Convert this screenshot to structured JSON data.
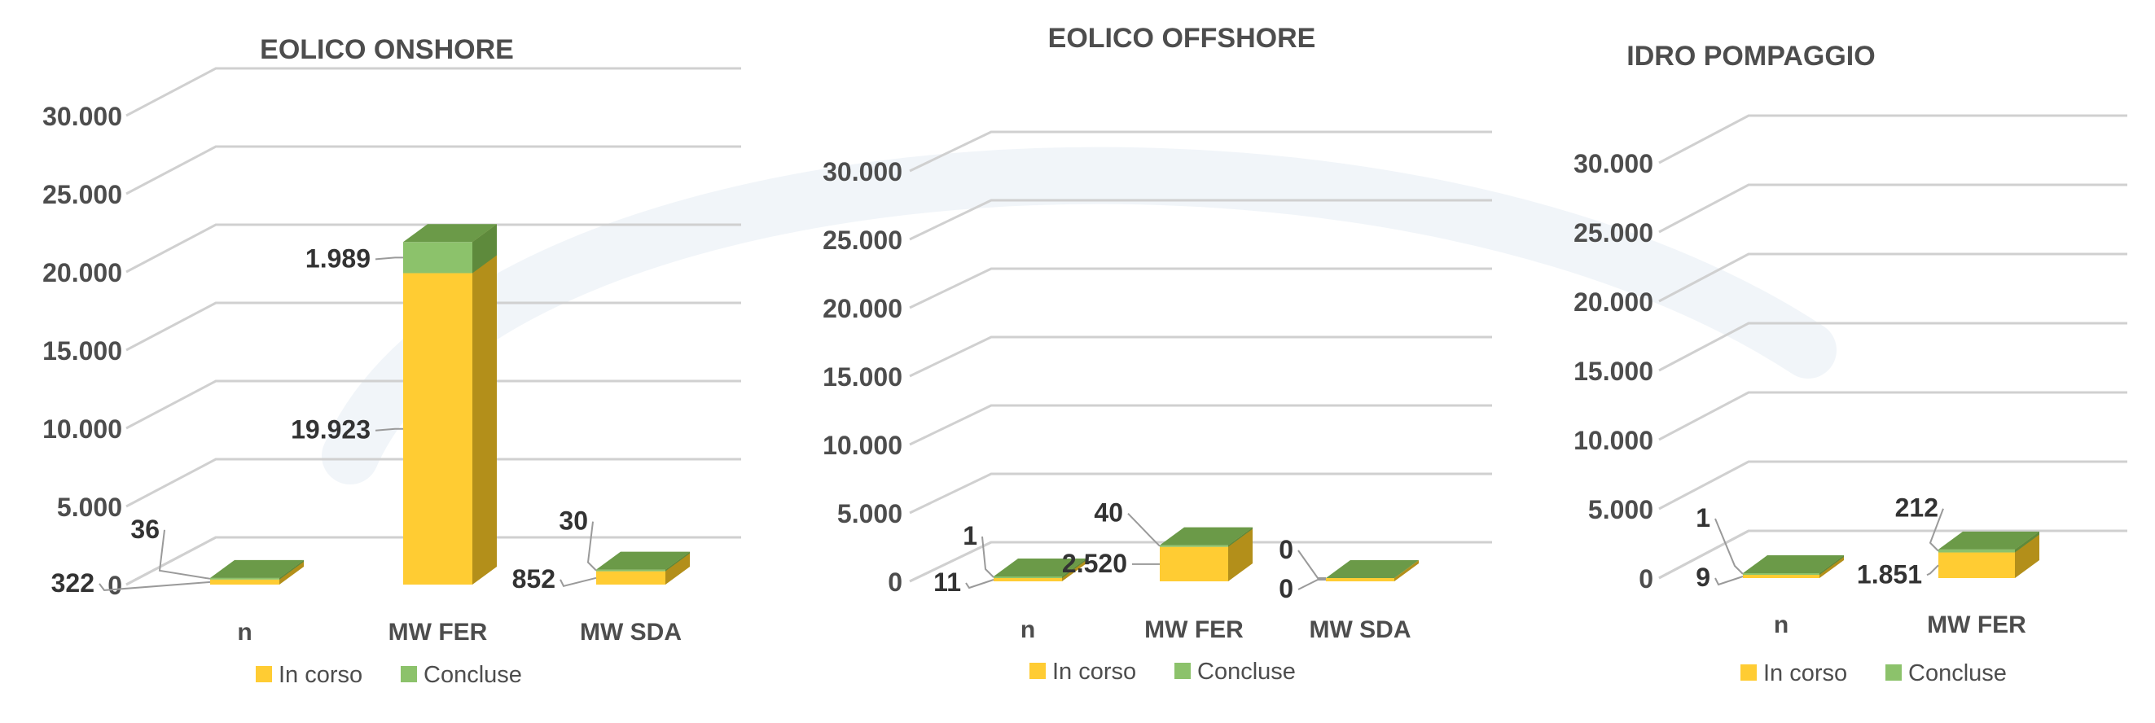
{
  "colors": {
    "in_corso": "#FFCC33",
    "concluse": "#8CC26B",
    "bar_top": "#6B9A48",
    "bar_side": "#B38F1A",
    "grid": "#D0D0D0",
    "text": "#4D4D4D"
  },
  "chart_data": [
    {
      "type": "bar",
      "stacked": true,
      "title": "EOLICO ONSHORE",
      "categories": [
        "n",
        "MW FER",
        "MW SDA"
      ],
      "series": [
        {
          "name": "In corso",
          "values": [
            322,
            19923,
            852
          ]
        },
        {
          "name": "Concluse",
          "values": [
            36,
            1989,
            30
          ]
        }
      ],
      "data_labels": {
        "In corso": [
          "322",
          "19.923",
          "852"
        ],
        "Concluse": [
          "36",
          "1.989",
          "30"
        ]
      },
      "ylim": [
        0,
        30000
      ],
      "yticks": [
        "0",
        "5.000",
        "10.000",
        "15.000",
        "20.000",
        "25.000",
        "30.000"
      ],
      "grid": true,
      "legend": "bottom"
    },
    {
      "type": "bar",
      "stacked": true,
      "title": "EOLICO OFFSHORE",
      "categories": [
        "n",
        "MW FER",
        "MW SDA"
      ],
      "series": [
        {
          "name": "In corso",
          "values": [
            11,
            2520,
            0
          ]
        },
        {
          "name": "Concluse",
          "values": [
            1,
            40,
            0
          ]
        }
      ],
      "data_labels": {
        "In corso": [
          "11",
          "2.520",
          "0"
        ],
        "Concluse": [
          "1",
          "40",
          "0"
        ]
      },
      "ylim": [
        0,
        30000
      ],
      "yticks": [
        "0",
        "5.000",
        "10.000",
        "15.000",
        "20.000",
        "25.000",
        "30.000"
      ],
      "grid": true,
      "legend": "bottom"
    },
    {
      "type": "bar",
      "stacked": true,
      "title": "IDRO POMPAGGIO",
      "categories": [
        "n",
        "MW FER"
      ],
      "series": [
        {
          "name": "In corso",
          "values": [
            9,
            1851
          ]
        },
        {
          "name": "Concluse",
          "values": [
            1,
            212
          ]
        }
      ],
      "data_labels": {
        "In corso": [
          "9",
          "1.851"
        ],
        "Concluse": [
          "1",
          "212"
        ]
      },
      "ylim": [
        0,
        30000
      ],
      "yticks": [
        "0",
        "5.000",
        "10.000",
        "15.000",
        "20.000",
        "25.000",
        "30.000"
      ],
      "grid": true,
      "legend": "bottom"
    }
  ]
}
